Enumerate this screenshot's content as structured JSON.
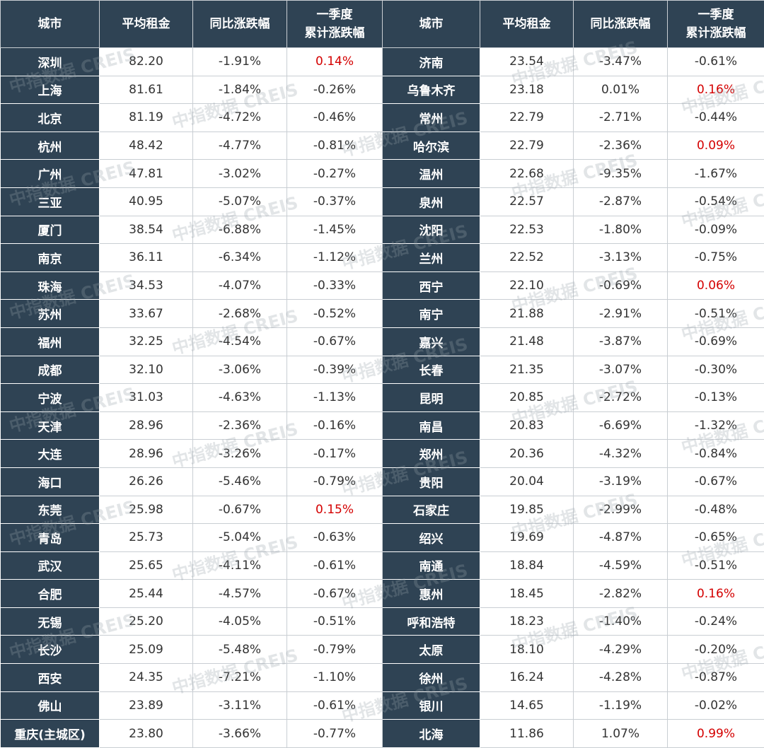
{
  "table": {
    "headers": [
      "城市",
      "平均租金",
      "同比涨跌幅",
      "一季度\n累计涨跌幅",
      "城市",
      "平均租金",
      "同比涨跌幅",
      "一季度\n累计涨跌幅"
    ],
    "rows": [
      [
        "深圳",
        "82.20",
        "-1.91%",
        "0.14%",
        "济南",
        "23.54",
        "-3.47%",
        "-0.61%"
      ],
      [
        "上海",
        "81.61",
        "-1.84%",
        "-0.26%",
        "乌鲁木齐",
        "23.18",
        "0.01%",
        "0.16%"
      ],
      [
        "北京",
        "81.19",
        "-4.72%",
        "-0.46%",
        "常州",
        "22.79",
        "-2.71%",
        "-0.44%"
      ],
      [
        "杭州",
        "48.42",
        "-4.77%",
        "-0.81%",
        "哈尔滨",
        "22.79",
        "-2.36%",
        "0.09%"
      ],
      [
        "广州",
        "47.81",
        "-3.02%",
        "-0.27%",
        "温州",
        "22.68",
        "-9.35%",
        "-1.67%"
      ],
      [
        "三亚",
        "40.95",
        "-5.07%",
        "-0.37%",
        "泉州",
        "22.57",
        "-2.87%",
        "-0.54%"
      ],
      [
        "厦门",
        "38.54",
        "-6.88%",
        "-1.45%",
        "沈阳",
        "22.53",
        "-1.80%",
        "-0.09%"
      ],
      [
        "南京",
        "36.11",
        "-6.34%",
        "-1.12%",
        "兰州",
        "22.52",
        "-3.13%",
        "-0.75%"
      ],
      [
        "珠海",
        "34.53",
        "-4.07%",
        "-0.33%",
        "西宁",
        "22.10",
        "-0.69%",
        "0.06%"
      ],
      [
        "苏州",
        "33.67",
        "-2.68%",
        "-0.52%",
        "南宁",
        "21.88",
        "-2.91%",
        "-0.51%"
      ],
      [
        "福州",
        "32.25",
        "-4.54%",
        "-0.67%",
        "嘉兴",
        "21.48",
        "-3.87%",
        "-0.69%"
      ],
      [
        "成都",
        "32.10",
        "-3.06%",
        "-0.39%",
        "长春",
        "21.35",
        "-3.07%",
        "-0.30%"
      ],
      [
        "宁波",
        "31.03",
        "-4.63%",
        "-1.13%",
        "昆明",
        "20.85",
        "-2.72%",
        "-0.13%"
      ],
      [
        "天津",
        "28.96",
        "-2.36%",
        "-0.16%",
        "南昌",
        "20.83",
        "-6.69%",
        "-1.32%"
      ],
      [
        "大连",
        "28.96",
        "-3.26%",
        "-0.17%",
        "郑州",
        "20.36",
        "-4.32%",
        "-0.84%"
      ],
      [
        "海口",
        "26.26",
        "-5.46%",
        "-0.79%",
        "贵阳",
        "20.04",
        "-3.19%",
        "-0.67%"
      ],
      [
        "东莞",
        "25.98",
        "-0.67%",
        "0.15%",
        "石家庄",
        "19.85",
        "-2.99%",
        "-0.48%"
      ],
      [
        "青岛",
        "25.73",
        "-5.04%",
        "-0.63%",
        "绍兴",
        "19.69",
        "-4.87%",
        "-0.65%"
      ],
      [
        "武汉",
        "25.65",
        "-4.11%",
        "-0.61%",
        "南通",
        "18.84",
        "-4.59%",
        "-0.51%"
      ],
      [
        "合肥",
        "25.44",
        "-4.57%",
        "-0.67%",
        "惠州",
        "18.45",
        "-2.82%",
        "0.16%"
      ],
      [
        "无锡",
        "25.20",
        "-4.05%",
        "-0.51%",
        "呼和浩特",
        "18.23",
        "-1.40%",
        "-0.24%"
      ],
      [
        "长沙",
        "25.09",
        "-5.48%",
        "-0.79%",
        "太原",
        "18.10",
        "-4.29%",
        "-0.20%"
      ],
      [
        "西安",
        "24.35",
        "-7.21%",
        "-1.10%",
        "徐州",
        "16.24",
        "-4.28%",
        "-0.87%"
      ],
      [
        "佛山",
        "23.89",
        "-3.11%",
        "-0.61%",
        "银川",
        "14.65",
        "-1.19%",
        "-0.02%"
      ],
      [
        "重庆(主城区)",
        "23.80",
        "-3.66%",
        "-0.77%",
        "北海",
        "11.86",
        "1.07%",
        "0.99%"
      ]
    ]
  },
  "watermark": "中指数据 CREIS"
}
